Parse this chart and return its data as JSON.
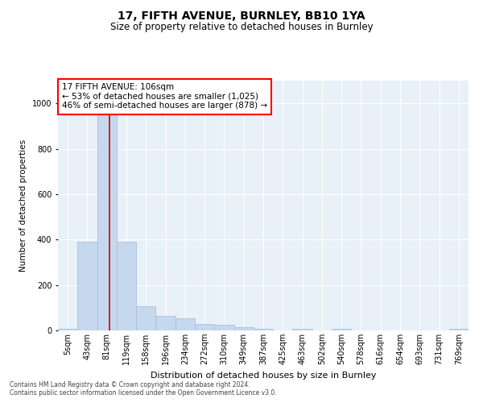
{
  "title1": "17, FIFTH AVENUE, BURNLEY, BB10 1YA",
  "title2": "Size of property relative to detached houses in Burnley",
  "xlabel": "Distribution of detached houses by size in Burnley",
  "ylabel": "Number of detached properties",
  "footer1": "Contains HM Land Registry data © Crown copyright and database right 2024.",
  "footer2": "Contains public sector information licensed under the Open Government Licence v3.0.",
  "annotation_line1": "17 FIFTH AVENUE: 106sqm",
  "annotation_line2": "← 53% of detached houses are smaller (1,025)",
  "annotation_line3": "46% of semi-detached houses are larger (878) →",
  "bar_color": "#c5d8ed",
  "bar_edge_color": "#aac0d8",
  "vline_color": "#cc0000",
  "vline_position": 2.15,
  "categories": [
    "5sqm",
    "43sqm",
    "81sqm",
    "119sqm",
    "158sqm",
    "196sqm",
    "234sqm",
    "272sqm",
    "310sqm",
    "349sqm",
    "387sqm",
    "425sqm",
    "463sqm",
    "502sqm",
    "540sqm",
    "578sqm",
    "616sqm",
    "654sqm",
    "693sqm",
    "731sqm",
    "769sqm"
  ],
  "values": [
    8,
    390,
    955,
    390,
    105,
    65,
    55,
    30,
    25,
    15,
    8,
    0,
    8,
    0,
    8,
    0,
    0,
    0,
    0,
    0,
    8
  ],
  "ylim": [
    0,
    1100
  ],
  "yticks": [
    0,
    200,
    400,
    600,
    800,
    1000
  ],
  "title1_fontsize": 10,
  "title2_fontsize": 8.5,
  "ylabel_fontsize": 7.5,
  "xlabel_fontsize": 8,
  "tick_fontsize": 7,
  "annotation_fontsize": 7.5,
  "footer_fontsize": 5.5,
  "background_color": "#ffffff",
  "plot_bg_color": "#e8f0f8"
}
